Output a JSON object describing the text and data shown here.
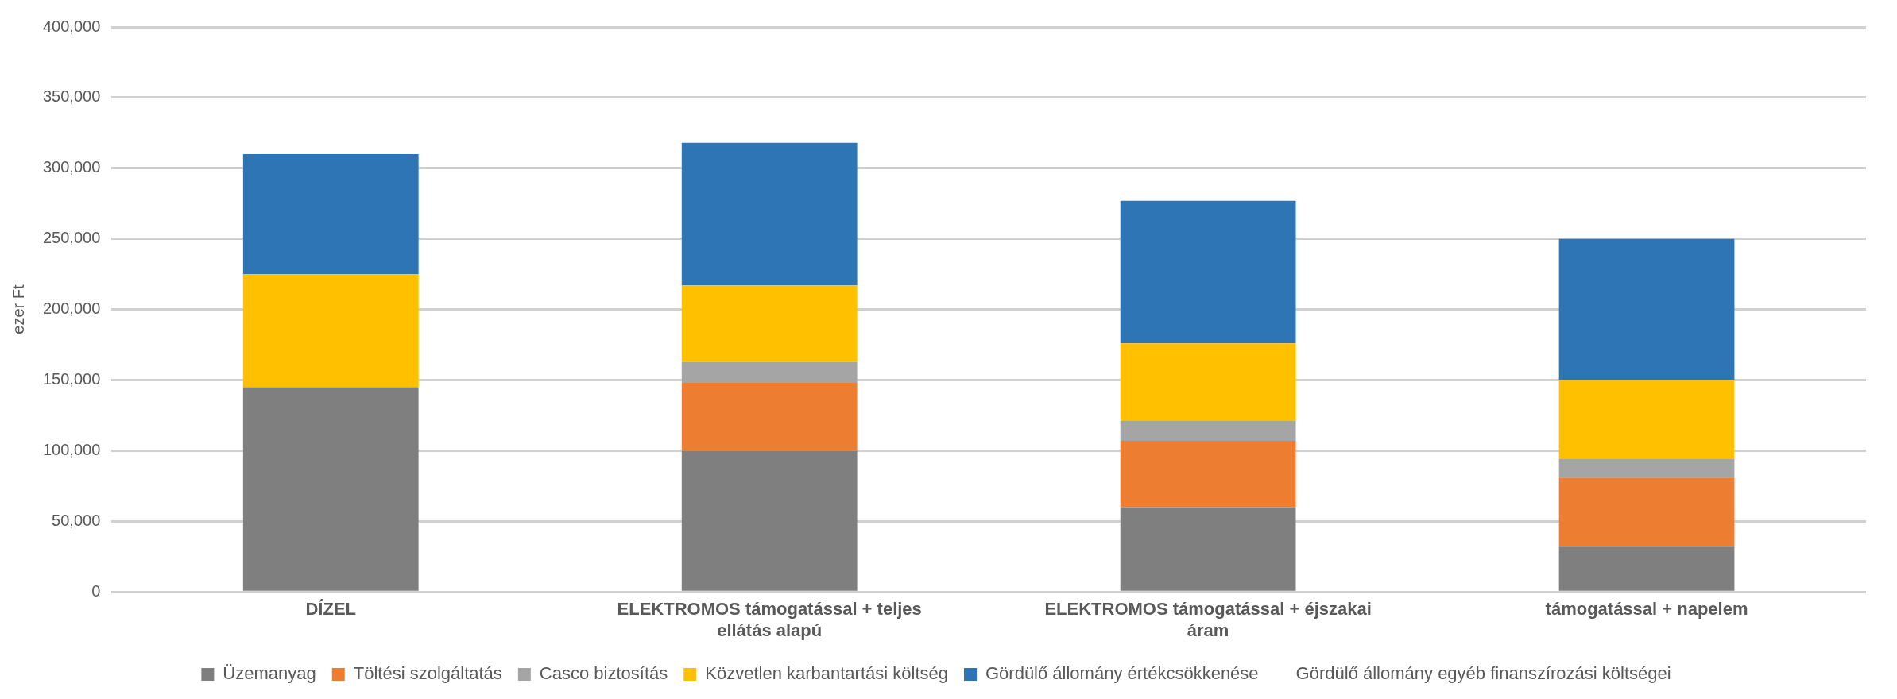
{
  "chart_data": {
    "type": "bar",
    "stacked": true,
    "ylabel": "ezer Ft",
    "categories": [
      "DÍZEL",
      "ELEKTROMOS támogatással + teljes ellátás alapú",
      "ELEKTROMOS támogatással + éjszakai áram",
      "támogatással + napelem"
    ],
    "series": [
      {
        "name": "Üzemanyag",
        "color": "#7f7f7f",
        "values": [
          145000,
          100000,
          60000,
          32000
        ]
      },
      {
        "name": "Töltési szolgáltatás",
        "color": "#ed7d31",
        "values": [
          0,
          48000,
          47000,
          49000
        ]
      },
      {
        "name": "Casco biztosítás",
        "color": "#a5a5a5",
        "values": [
          0,
          15000,
          14000,
          13000
        ]
      },
      {
        "name": "Közvetlen karbantartási költség",
        "color": "#ffc000",
        "values": [
          80000,
          54000,
          55000,
          56000
        ]
      },
      {
        "name": "Gördülő állomány értékcsökkenése",
        "color": "#2e75b6",
        "values": [
          85000,
          101000,
          101000,
          100000
        ]
      },
      {
        "name": "Gördülő állomány egyéb finanszírozási költségei",
        "values": [
          null,
          null,
          null,
          null
        ]
      }
    ],
    "ylim": [
      0,
      400000
    ],
    "yticks": [
      {
        "value": 0,
        "label": "0"
      },
      {
        "value": 50000,
        "label": "50,000"
      },
      {
        "value": 100000,
        "label": "100,000"
      },
      {
        "value": 150000,
        "label": "150,000"
      },
      {
        "value": 200000,
        "label": "200,000"
      },
      {
        "value": 250000,
        "label": "250,000"
      },
      {
        "value": 300000,
        "label": "300,000"
      },
      {
        "value": 350000,
        "label": "350,000"
      },
      {
        "value": 400000,
        "label": "400,000"
      }
    ],
    "grid": "y",
    "legend": "bottom"
  }
}
